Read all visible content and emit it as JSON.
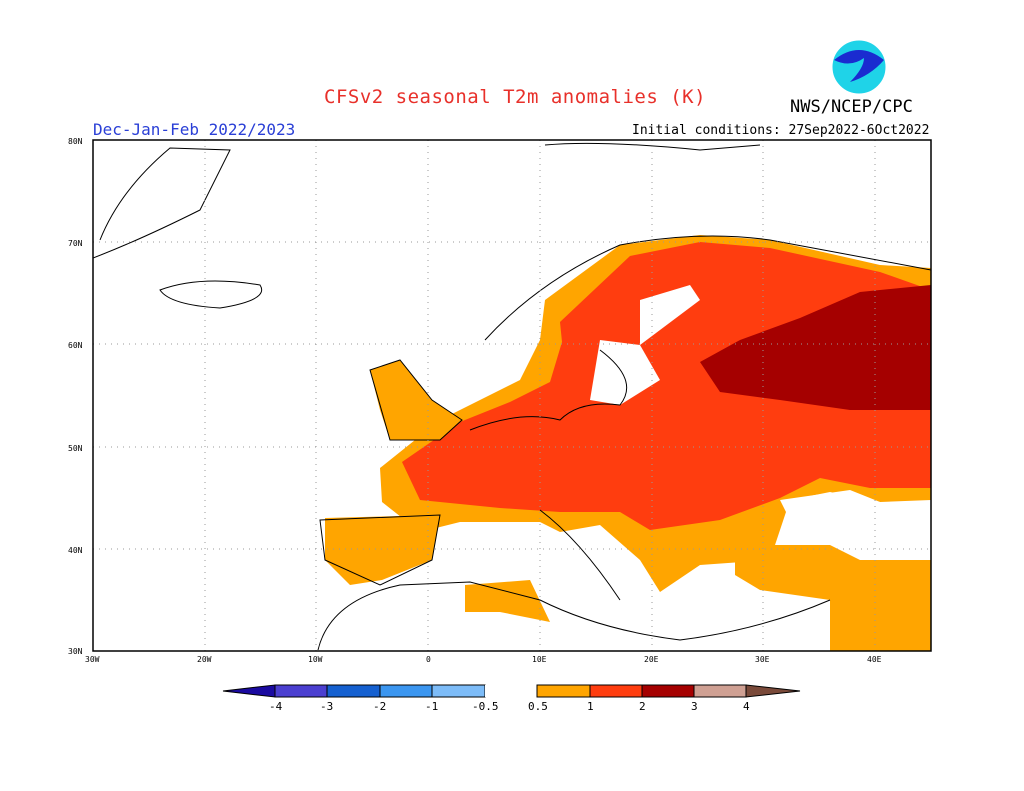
{
  "title": "CFSv2 seasonal T2m anomalies (K)",
  "agency": "NWS/NCEP/CPC",
  "logo_text": "NOAA",
  "season": "Dec-Jan-Feb 2022/2023",
  "initial_conditions": "Initial conditions: 27Sep2022-6Oct2022",
  "map": {
    "region": "Europe",
    "lon_range": [
      -30,
      45
    ],
    "lat_range": [
      30,
      80
    ],
    "lat_labels": [
      "80N",
      "70N",
      "60N",
      "50N",
      "40N",
      "30N"
    ],
    "lon_labels": [
      "30W",
      "20W",
      "10W",
      "0",
      "10E",
      "20E",
      "30E",
      "40E"
    ],
    "grid": "dotted"
  },
  "colorbar": {
    "labels": [
      "-4",
      "-3",
      "-2",
      "-1",
      "-0.5",
      "0.5",
      "1",
      "2",
      "3",
      "4"
    ],
    "colors": [
      "#1a0aa0",
      "#4b3fd0",
      "#1560d0",
      "#3b96f0",
      "#7dbcf8",
      "#ffffff",
      "#ffa500",
      "#ff3d0f",
      "#a50000",
      "#cfa093",
      "#7a4a3a"
    ]
  }
}
